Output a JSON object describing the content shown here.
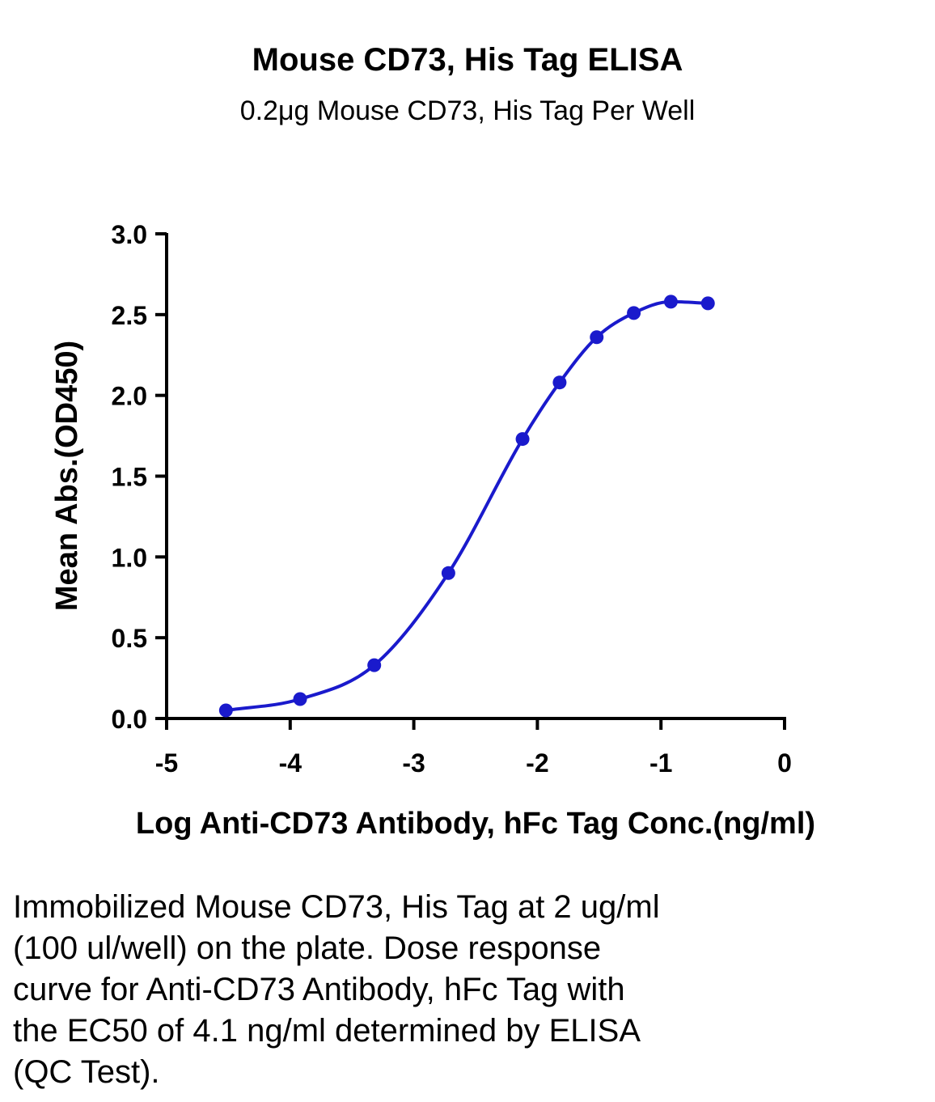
{
  "chart_data": {
    "type": "scatter",
    "title": "Mouse CD73, His Tag ELISA",
    "subtitle": "0.2μg Mouse CD73, His Tag Per Well",
    "xlabel": "Log Anti-CD73 Antibody, hFc Tag Conc.(ng/ml)",
    "ylabel": "Mean Abs.(OD450)",
    "xlim": [
      -5,
      0
    ],
    "ylim": [
      0,
      3.0
    ],
    "xticks": [
      "-5",
      "-4",
      "-3",
      "-2",
      "-1",
      "0"
    ],
    "yticks": [
      "0.0",
      "0.5",
      "1.0",
      "1.5",
      "2.0",
      "2.5",
      "3.0"
    ],
    "grid": false,
    "series": [
      {
        "color": "#1a1acc",
        "x": [
          -4.52,
          -3.92,
          -3.32,
          -2.72,
          -2.12,
          -1.82,
          -1.52,
          -1.22,
          -0.92,
          -0.62
        ],
        "y": [
          0.05,
          0.12,
          0.33,
          0.9,
          1.73,
          2.08,
          2.36,
          2.51,
          2.58,
          2.57
        ],
        "fit": "four-parameter logistic"
      }
    ]
  },
  "caption": "Immobilized Mouse CD73, His Tag at 2 ug/ml\n(100 ul/well) on the plate. Dose response\ncurve for Anti-CD73 Antibody, hFc Tag with\nthe EC50 of 4.1 ng/ml determined by ELISA\n(QC Test)."
}
